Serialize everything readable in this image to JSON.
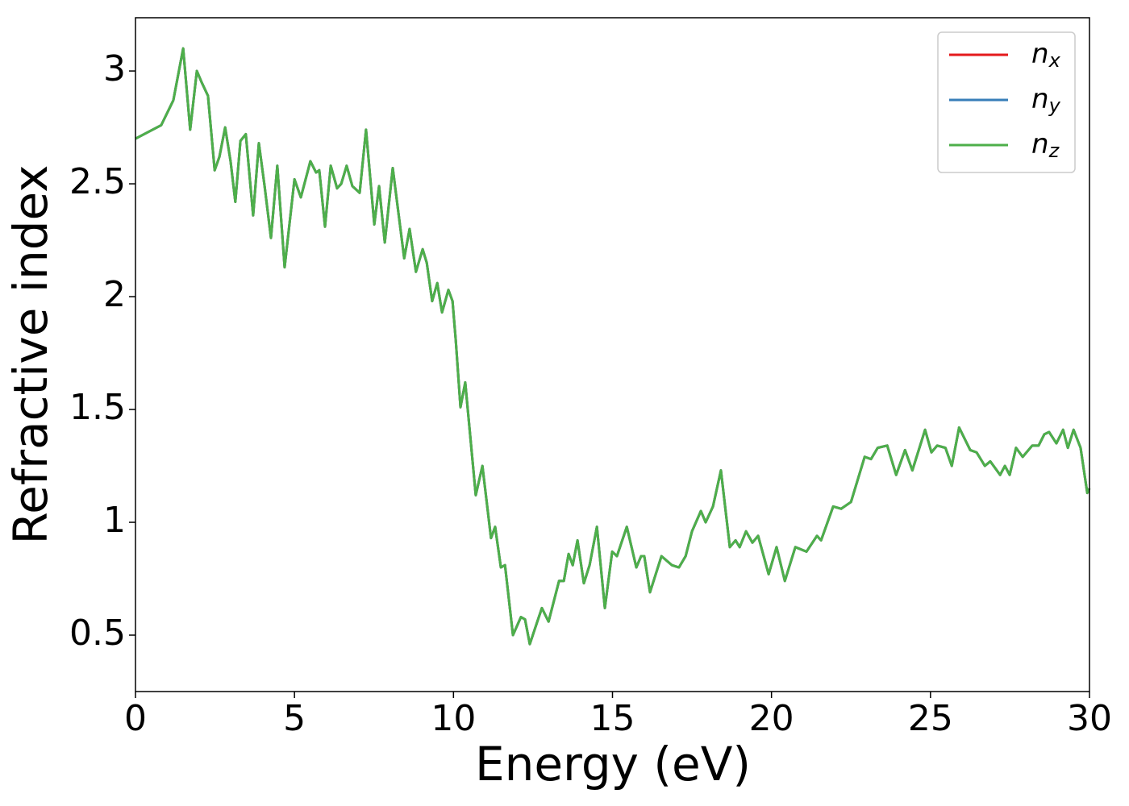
{
  "chart_data": {
    "type": "line",
    "x_label": "Energy (eV)",
    "y_label": "Refractive index",
    "x": [
      0,
      0.81,
      1.19,
      1.5,
      1.72,
      1.93,
      2.08,
      2.28,
      2.49,
      2.64,
      2.82,
      2.99,
      3.14,
      3.3,
      3.47,
      3.7,
      3.88,
      4.06,
      4.26,
      4.46,
      4.69,
      5.0,
      5.2,
      5.5,
      5.68,
      5.78,
      5.96,
      6.14,
      6.34,
      6.47,
      6.64,
      6.82,
      7.05,
      7.25,
      7.51,
      7.66,
      7.84,
      8.09,
      8.27,
      8.45,
      8.62,
      8.82,
      9.03,
      9.16,
      9.33,
      9.49,
      9.64,
      9.84,
      9.97,
      10.07,
      10.22,
      10.37,
      10.7,
      10.91,
      11.18,
      11.31,
      11.49,
      11.62,
      11.87,
      12.12,
      12.25,
      12.4,
      12.66,
      12.78,
      12.99,
      13.32,
      13.47,
      13.62,
      13.75,
      13.9,
      14.1,
      14.28,
      14.51,
      14.76,
      14.99,
      15.14,
      15.45,
      15.75,
      15.9,
      16.0,
      16.18,
      16.54,
      16.87,
      17.09,
      17.3,
      17.5,
      17.78,
      17.93,
      18.16,
      18.41,
      18.69,
      18.87,
      19.0,
      19.2,
      19.4,
      19.58,
      19.91,
      20.16,
      20.42,
      20.75,
      21.1,
      21.43,
      21.56,
      21.94,
      22.19,
      22.5,
      22.93,
      23.13,
      23.34,
      23.64,
      23.92,
      24.2,
      24.43,
      24.83,
      25.03,
      25.21,
      25.47,
      25.67,
      25.9,
      26.25,
      26.45,
      26.71,
      26.88,
      27.19,
      27.34,
      27.49,
      27.69,
      27.9,
      28.2,
      28.4,
      28.58,
      28.73,
      28.96,
      29.17,
      29.32,
      29.5,
      29.72,
      29.93,
      30.0
    ],
    "series": [
      {
        "name": "n_x",
        "color": "#e41a1c",
        "values": [
          2.7,
          2.76,
          2.87,
          3.1,
          2.74,
          3.0,
          2.95,
          2.89,
          2.56,
          2.62,
          2.75,
          2.6,
          2.42,
          2.69,
          2.72,
          2.36,
          2.68,
          2.49,
          2.26,
          2.58,
          2.13,
          2.52,
          2.44,
          2.6,
          2.55,
          2.56,
          2.31,
          2.58,
          2.48,
          2.5,
          2.58,
          2.49,
          2.46,
          2.74,
          2.32,
          2.49,
          2.24,
          2.57,
          2.37,
          2.17,
          2.3,
          2.11,
          2.21,
          2.15,
          1.98,
          2.06,
          1.93,
          2.03,
          1.98,
          1.81,
          1.51,
          1.62,
          1.12,
          1.25,
          0.93,
          0.98,
          0.8,
          0.81,
          0.5,
          0.58,
          0.57,
          0.46,
          0.57,
          0.62,
          0.56,
          0.74,
          0.74,
          0.86,
          0.81,
          0.92,
          0.73,
          0.81,
          0.98,
          0.62,
          0.87,
          0.85,
          0.98,
          0.8,
          0.85,
          0.85,
          0.69,
          0.85,
          0.81,
          0.8,
          0.85,
          0.96,
          1.05,
          1.0,
          1.07,
          1.23,
          0.89,
          0.92,
          0.89,
          0.96,
          0.91,
          0.94,
          0.77,
          0.89,
          0.74,
          0.89,
          0.87,
          0.94,
          0.92,
          1.07,
          1.06,
          1.09,
          1.29,
          1.28,
          1.33,
          1.34,
          1.21,
          1.32,
          1.23,
          1.41,
          1.31,
          1.34,
          1.33,
          1.25,
          1.42,
          1.32,
          1.31,
          1.25,
          1.27,
          1.21,
          1.25,
          1.21,
          1.33,
          1.29,
          1.34,
          1.34,
          1.39,
          1.4,
          1.35,
          1.41,
          1.33,
          1.41,
          1.33,
          1.13,
          1.15
        ]
      },
      {
        "name": "n_y",
        "color": "#377eb8",
        "values": [
          2.7,
          2.76,
          2.87,
          3.1,
          2.74,
          3.0,
          2.95,
          2.89,
          2.56,
          2.62,
          2.75,
          2.6,
          2.42,
          2.69,
          2.72,
          2.36,
          2.68,
          2.49,
          2.26,
          2.58,
          2.13,
          2.52,
          2.44,
          2.6,
          2.55,
          2.56,
          2.31,
          2.58,
          2.48,
          2.5,
          2.58,
          2.49,
          2.46,
          2.74,
          2.32,
          2.49,
          2.24,
          2.57,
          2.37,
          2.17,
          2.3,
          2.11,
          2.21,
          2.15,
          1.98,
          2.06,
          1.93,
          2.03,
          1.98,
          1.81,
          1.51,
          1.62,
          1.12,
          1.25,
          0.93,
          0.98,
          0.8,
          0.81,
          0.5,
          0.58,
          0.57,
          0.46,
          0.57,
          0.62,
          0.56,
          0.74,
          0.74,
          0.86,
          0.81,
          0.92,
          0.73,
          0.81,
          0.98,
          0.62,
          0.87,
          0.85,
          0.98,
          0.8,
          0.85,
          0.85,
          0.69,
          0.85,
          0.81,
          0.8,
          0.85,
          0.96,
          1.05,
          1.0,
          1.07,
          1.23,
          0.89,
          0.92,
          0.89,
          0.96,
          0.91,
          0.94,
          0.77,
          0.89,
          0.74,
          0.89,
          0.87,
          0.94,
          0.92,
          1.07,
          1.06,
          1.09,
          1.29,
          1.28,
          1.33,
          1.34,
          1.21,
          1.32,
          1.23,
          1.41,
          1.31,
          1.34,
          1.33,
          1.25,
          1.42,
          1.32,
          1.31,
          1.25,
          1.27,
          1.21,
          1.25,
          1.21,
          1.33,
          1.29,
          1.34,
          1.34,
          1.39,
          1.4,
          1.35,
          1.41,
          1.33,
          1.41,
          1.33,
          1.13,
          1.15
        ]
      },
      {
        "name": "n_z",
        "color": "#4daf4a",
        "values": [
          2.7,
          2.76,
          2.87,
          3.1,
          2.74,
          3.0,
          2.95,
          2.89,
          2.56,
          2.62,
          2.75,
          2.6,
          2.42,
          2.69,
          2.72,
          2.36,
          2.68,
          2.49,
          2.26,
          2.58,
          2.13,
          2.52,
          2.44,
          2.6,
          2.55,
          2.56,
          2.31,
          2.58,
          2.48,
          2.5,
          2.58,
          2.49,
          2.46,
          2.74,
          2.32,
          2.49,
          2.24,
          2.57,
          2.37,
          2.17,
          2.3,
          2.11,
          2.21,
          2.15,
          1.98,
          2.06,
          1.93,
          2.03,
          1.98,
          1.81,
          1.51,
          1.62,
          1.12,
          1.25,
          0.93,
          0.98,
          0.8,
          0.81,
          0.5,
          0.58,
          0.57,
          0.46,
          0.57,
          0.62,
          0.56,
          0.74,
          0.74,
          0.86,
          0.81,
          0.92,
          0.73,
          0.81,
          0.98,
          0.62,
          0.87,
          0.85,
          0.98,
          0.8,
          0.85,
          0.85,
          0.69,
          0.85,
          0.81,
          0.8,
          0.85,
          0.96,
          1.05,
          1.0,
          1.07,
          1.23,
          0.89,
          0.92,
          0.89,
          0.96,
          0.91,
          0.94,
          0.77,
          0.89,
          0.74,
          0.89,
          0.87,
          0.94,
          0.92,
          1.07,
          1.06,
          1.09,
          1.29,
          1.28,
          1.33,
          1.34,
          1.21,
          1.32,
          1.23,
          1.41,
          1.31,
          1.34,
          1.33,
          1.25,
          1.42,
          1.32,
          1.31,
          1.25,
          1.27,
          1.21,
          1.25,
          1.21,
          1.33,
          1.29,
          1.34,
          1.34,
          1.39,
          1.4,
          1.35,
          1.41,
          1.33,
          1.41,
          1.33,
          1.13,
          1.15
        ]
      }
    ],
    "xlim": [
      0,
      30
    ],
    "xticks": [
      0,
      5,
      10,
      15,
      20,
      25,
      30
    ],
    "ylim": [
      0.25,
      3.236
    ],
    "yticks": [
      0.5,
      1.0,
      1.5,
      2.0,
      2.5,
      3.0
    ],
    "grid": false,
    "legend": "upper right"
  }
}
